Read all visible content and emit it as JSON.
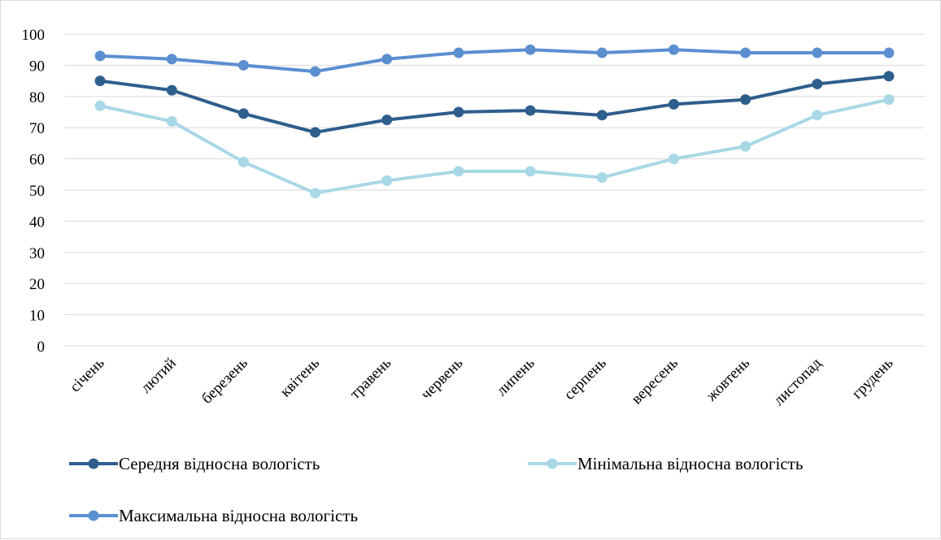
{
  "chart_data": {
    "type": "line",
    "title": "",
    "xlabel": "",
    "ylabel": "",
    "ylim": [
      0,
      100
    ],
    "y_ticks": [
      "0",
      "10",
      "20",
      "30",
      "40",
      "50",
      "60",
      "70",
      "80",
      "90",
      "100"
    ],
    "grid": "horizontal",
    "legend_position": "bottom",
    "categories": [
      "січень",
      "лютий",
      "березень",
      "квітень",
      "травень",
      "червень",
      "липень",
      "серпень",
      "вересень",
      "жовтень",
      "листопад",
      "грудень"
    ],
    "series": [
      {
        "name": "Середня відносна вологість",
        "color": "#2e5e8c",
        "values": [
          85,
          82,
          74.5,
          68.5,
          72.5,
          75,
          75.5,
          74,
          77.5,
          79,
          84,
          86.5
        ]
      },
      {
        "name": "Мінімальна відносна вологість",
        "color": "#a8d8e6",
        "values": [
          77,
          72,
          59,
          49,
          53,
          56,
          56,
          54,
          60,
          64,
          74,
          79
        ]
      },
      {
        "name": "Максимальна відносна вологість",
        "color": "#5b8fd0",
        "values": [
          93,
          92,
          90,
          88,
          92,
          94,
          95,
          94,
          95,
          94,
          94,
          94
        ]
      }
    ]
  }
}
